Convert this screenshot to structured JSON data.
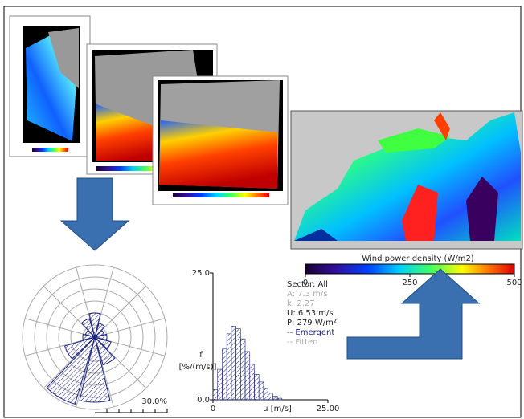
{
  "colorbar": {
    "title": "Wind power density (W/m2)",
    "lim": [
      0,
      500
    ],
    "ticks": [
      0,
      250,
      500
    ]
  },
  "wind_rose": {
    "sectors": [
      10,
      6,
      4,
      5,
      7,
      12,
      27,
      29,
      13,
      5,
      4,
      8
    ],
    "rlim": [
      0,
      30
    ],
    "rings": [
      5,
      10,
      15,
      20,
      25,
      30
    ],
    "scale_label": {
      "value": 30,
      "label": "30.0%"
    }
  },
  "histogram": {
    "y_label": "f",
    "y_unit": "[%/(m/s)]",
    "x_label": "u [m/s]",
    "ylim": [
      0,
      25
    ],
    "yticks": [
      {
        "value": 25,
        "label": "25.0"
      },
      {
        "value": 0,
        "label": "0.0"
      }
    ],
    "xlim": [
      0,
      25
    ],
    "xticks": [
      0,
      {
        "value": 25,
        "label": "25.00"
      }
    ],
    "bins": [
      0,
      1,
      2,
      3,
      4,
      5,
      6,
      7,
      8,
      9,
      10,
      11,
      12,
      13,
      14,
      15
    ],
    "values": [
      2,
      6,
      10,
      13,
      14.5,
      14,
      12,
      9.5,
      7,
      5,
      3.5,
      2.2,
      1.3,
      0.7,
      0.3
    ]
  },
  "stats": {
    "sector": "Sector: All",
    "a": "A: 7.3 m/s",
    "k": "k: 2.27",
    "u": "U: 6.53 m/s",
    "p": "P: 279 W/m²",
    "emergent": "-- Emergent",
    "fitted": "-- Fitted"
  }
}
